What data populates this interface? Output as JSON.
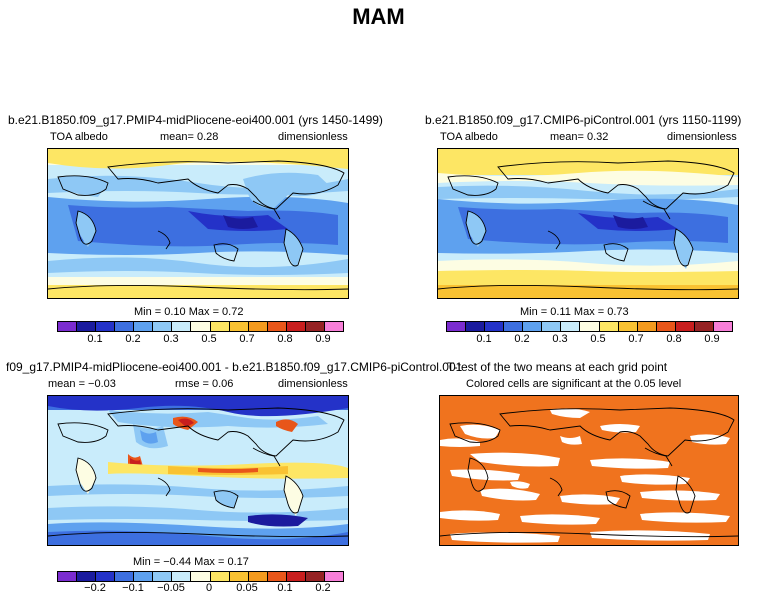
{
  "page_title": "MAM",
  "panels": {
    "p1": {
      "title": "b.e21.B1850.f09_g17.PMIP4-midPliocene-eoi400.001 (yrs 1450-1499)",
      "left_label": "TOA albedo",
      "mean_text": "mean=    0.28",
      "units": "dimensionless",
      "minmax": "Min =    0.10  Max =    0.72",
      "cbar_labels": [
        "0.1",
        "0.2",
        "0.3",
        "0.5",
        "0.7",
        "0.8",
        "0.9"
      ]
    },
    "p2": {
      "title": "b.e21.B1850.f09_g17.CMIP6-piControl.001 (yrs 1150-1199)",
      "left_label": "TOA albedo",
      "mean_text": "mean=    0.32",
      "units": "dimensionless",
      "minmax": "Min =    0.11  Max =    0.73",
      "cbar_labels": [
        "0.1",
        "0.2",
        "0.3",
        "0.5",
        "0.7",
        "0.8",
        "0.9"
      ]
    },
    "p3": {
      "title": "f09_g17.PMIP4-midPliocene-eoi400.001 - b.e21.B1850.f09_g17.CMIP6-piControl.001",
      "mean_text": "mean =   −0.03",
      "rmse_text": "rmse =   0.06",
      "units": "dimensionless",
      "minmax": "Min =   −0.44  Max =    0.17",
      "cbar_labels": [
        "−0.2",
        "−0.1",
        "−0.05",
        "0",
        "0.05",
        "0.1",
        "0.2"
      ]
    },
    "p4": {
      "title": "T-test of the two means at each grid point",
      "subtitle": "Colored cells are significant at the 0.05 level"
    }
  },
  "colors": {
    "abs_scale": [
      "#7b2cd0",
      "#1b1b9e",
      "#2432c8",
      "#3d6fe0",
      "#5ea1ef",
      "#8ec8f5",
      "#c9ecfb",
      "#fdfde3",
      "#fde664",
      "#f9c232",
      "#f39a1e",
      "#e8561a",
      "#c81e1e",
      "#962224",
      "#f77fd8"
    ],
    "diff_scale": [
      "#7b2cd0",
      "#1b1b9e",
      "#2432c8",
      "#3d6fe0",
      "#5ea1ef",
      "#8ec8f5",
      "#c9ecfb",
      "#fdfde3",
      "#fde664",
      "#f9c232",
      "#f39a1e",
      "#e8561a",
      "#c81e1e",
      "#962224",
      "#f77fd8"
    ],
    "ttest_fill": "#f0731e"
  }
}
